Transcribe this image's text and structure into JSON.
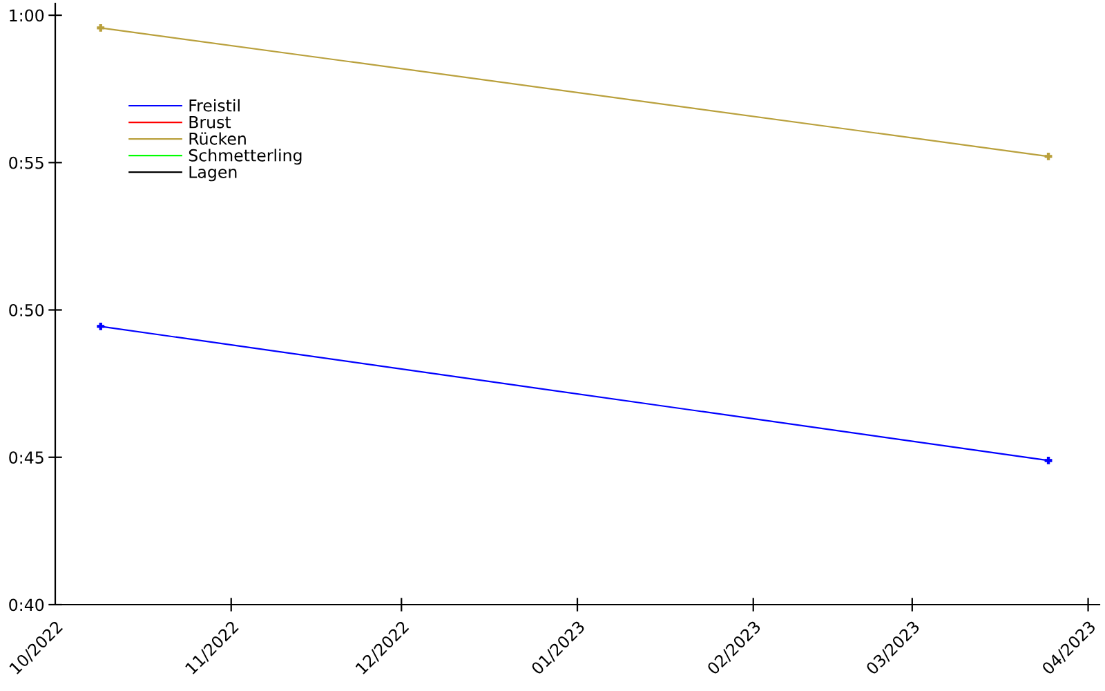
{
  "chart_data": {
    "type": "line",
    "x": [
      "2022-10-09",
      "2023-03-25"
    ],
    "series": [
      {
        "name": "Freistil",
        "color": "#0000ff",
        "values": [
          49.44,
          44.89
        ]
      },
      {
        "name": "Brust",
        "color": "#ff0000",
        "values": [
          null,
          null
        ]
      },
      {
        "name": "Rücken",
        "color": "#b9a03c",
        "values": [
          59.57,
          55.21
        ]
      },
      {
        "name": "Schmetterling",
        "color": "#00ff00",
        "values": [
          null,
          null
        ]
      },
      {
        "name": "Lagen",
        "color": "#000000",
        "values": [
          null,
          null
        ]
      }
    ],
    "xlim": [
      "2022-10-01",
      "2023-04-03"
    ],
    "xticks": [
      {
        "value": "2022-10-01",
        "label": "10/2022"
      },
      {
        "value": "2022-11-01",
        "label": "11/2022"
      },
      {
        "value": "2022-12-01",
        "label": "12/2022"
      },
      {
        "value": "2023-01-01",
        "label": "01/2023"
      },
      {
        "value": "2023-02-01",
        "label": "02/2023"
      },
      {
        "value": "2023-03-01",
        "label": "03/2023"
      },
      {
        "value": "2023-04-01",
        "label": "04/2023"
      }
    ],
    "ylim": [
      40,
      60.4
    ],
    "yticks": [
      {
        "value": 40,
        "label": "0:40"
      },
      {
        "value": 45,
        "label": "0:45"
      },
      {
        "value": 50,
        "label": "0:50"
      },
      {
        "value": 55,
        "label": "0:55"
      },
      {
        "value": 60,
        "label": "1:00"
      }
    ],
    "legend": "top left",
    "marker": "cross",
    "line_style": "solid"
  }
}
